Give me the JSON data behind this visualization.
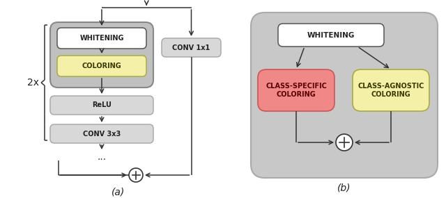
{
  "fig_width": 6.4,
  "fig_height": 2.85,
  "dpi": 100,
  "bg_color": "#ffffff",
  "box_outer_gray": "#c0c0c0",
  "box_mid_gray": "#d4d4d4",
  "box_white": "#ffffff",
  "box_yellow": "#f5f0a8",
  "box_red_light": "#f08888",
  "text_dark": "#222222",
  "text_olive": "#4a4a00",
  "text_darkred": "#5a0000",
  "edge_dark": "#555555",
  "edge_gray": "#888888",
  "arrow_color": "#333333",
  "label_a": "(a)",
  "label_b": "(b)",
  "label_2x": "2x",
  "label_whitening": "WHITENING",
  "label_coloring": "COLORING",
  "label_relu": "ReLU",
  "label_conv3x3": "CONV 3x3",
  "label_conv1x1": "CONV 1x1",
  "label_whitening_b": "WHITENING",
  "label_class_specific": "CLASS-SPECIFIC\nCOLORING",
  "label_class_agnostic": "CLASS-AGNOSTIC\nCOLORING"
}
